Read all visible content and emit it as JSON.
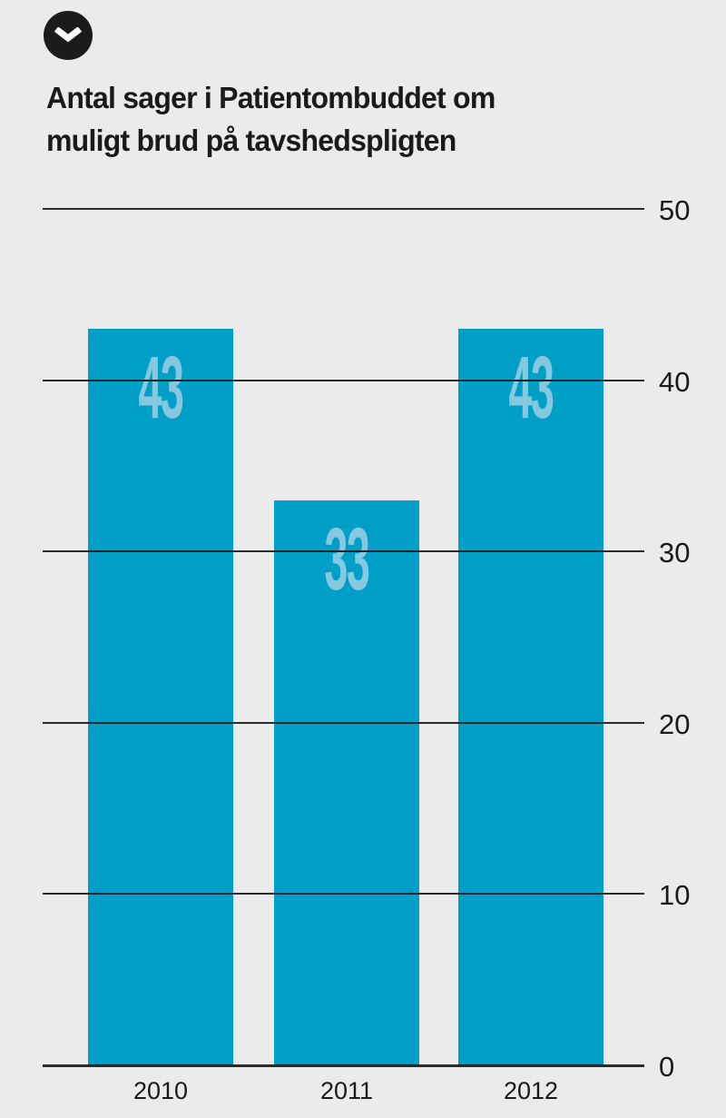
{
  "header": {
    "logo_icon": "chevron-down-icon",
    "title": "Antal sager i Patientombuddet om\nmuligt brud på tavshedspligten"
  },
  "chart_data": {
    "type": "bar",
    "title": "Antal sager i Patientombuddet om muligt brud på tavshedspligten",
    "categories": [
      "2010",
      "2011",
      "2012"
    ],
    "values": [
      43,
      33,
      43
    ],
    "value_labels": [
      "43",
      "33",
      "43"
    ],
    "xlabel": "",
    "ylabel": "",
    "ylim": [
      0,
      50
    ],
    "yticks": [
      0,
      10,
      20,
      30,
      40,
      50
    ],
    "grid": true,
    "legend": "none",
    "colors": {
      "background": "#ebebeb",
      "bar": "#009fc8",
      "value_label": "#85c8e0",
      "gridline": "#1a1a1a",
      "text": "#1a1a1a",
      "logo_circle": "#1b1b1b",
      "logo_chevron": "#ffffff"
    }
  }
}
